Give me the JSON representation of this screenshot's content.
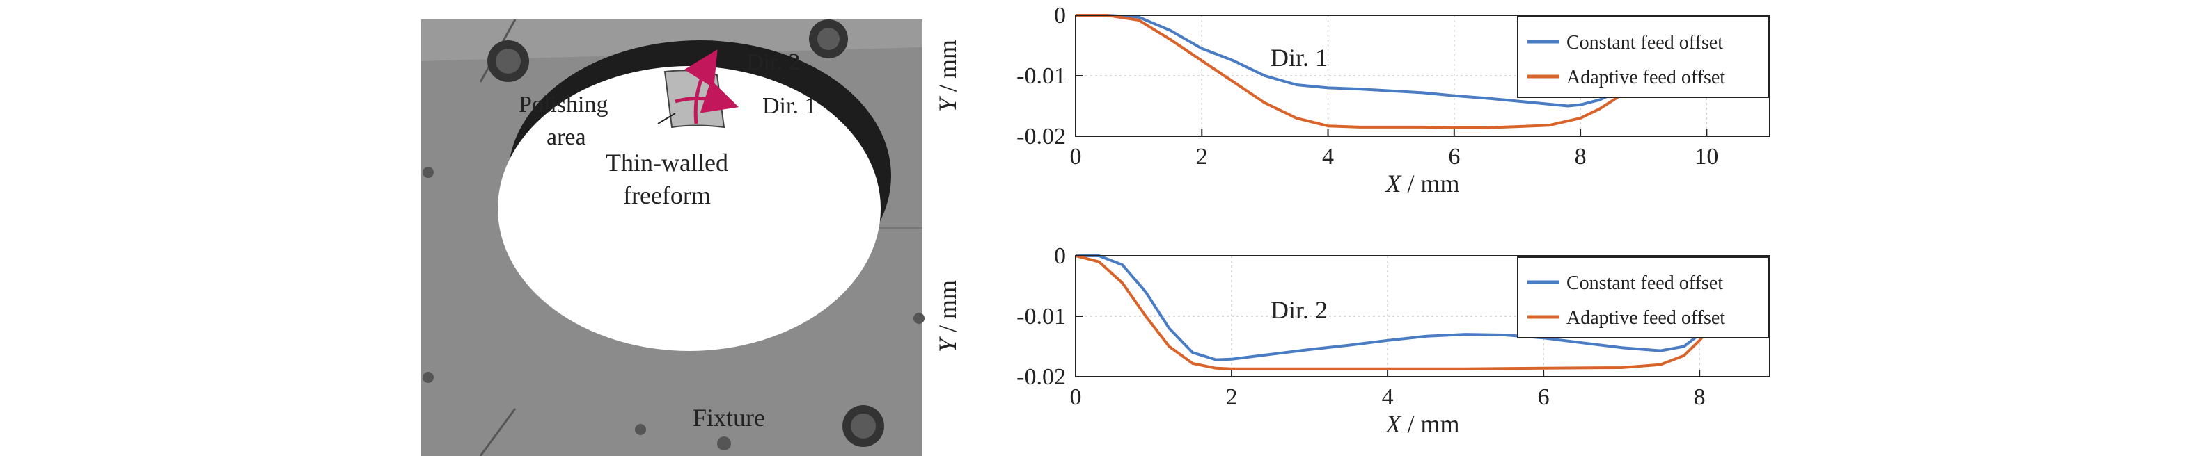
{
  "photo": {
    "labels": {
      "dir2": "Dir. 2",
      "dir1": "Dir. 1",
      "polishing_line1": "Polishing",
      "polishing_line2": "area",
      "thin_line1": "Thin-walled",
      "thin_line2": "freeform",
      "fixture": "Fixture"
    },
    "colors": {
      "plate": "#8a8a8a",
      "arrow": "#c2185b",
      "patch": "#b9b9b9"
    }
  },
  "chart_data": [
    {
      "type": "line",
      "annotation": "Dir. 1",
      "xlabel_italic": "X",
      "xlabel_unit": " / mm",
      "ylabel_italic": "Y",
      "ylabel_unit": " / mm",
      "xlim": [
        0,
        11
      ],
      "ylim": [
        -0.02,
        0
      ],
      "xticks": [
        0,
        2,
        4,
        6,
        8,
        10
      ],
      "xtick_labels": [
        "0",
        "2",
        "4",
        "6",
        "8",
        "10"
      ],
      "yticks": [
        0,
        -0.01,
        -0.02
      ],
      "ytick_labels": [
        "0",
        "-0.01",
        "-0.02"
      ],
      "grid": true,
      "legend_position": "top-right",
      "series": [
        {
          "name": "Constant feed offset",
          "color": "#4a7cc4",
          "x": [
            0,
            0.5,
            1.0,
            1.5,
            2.0,
            2.5,
            3.0,
            3.5,
            4.0,
            4.5,
            5.0,
            5.5,
            6.0,
            6.5,
            7.0,
            7.5,
            7.8,
            8.0,
            8.3,
            8.6,
            8.9,
            9.2
          ],
          "y": [
            0,
            0,
            -0.0003,
            -0.0025,
            -0.0055,
            -0.0075,
            -0.01,
            -0.0115,
            -0.012,
            -0.0122,
            -0.0125,
            -0.0128,
            -0.0133,
            -0.0137,
            -0.0142,
            -0.0147,
            -0.015,
            -0.0148,
            -0.014,
            -0.0126,
            -0.011,
            -0.009
          ]
        },
        {
          "name": "Adaptive feed offset",
          "color": "#d9642b",
          "x": [
            0,
            0.5,
            1.0,
            1.5,
            2.0,
            2.5,
            3.0,
            3.5,
            4.0,
            4.5,
            5.0,
            5.5,
            6.0,
            6.5,
            7.0,
            7.5,
            8.0,
            8.3,
            8.6,
            8.9,
            9.2
          ],
          "y": [
            0,
            0,
            -0.0008,
            -0.004,
            -0.0075,
            -0.011,
            -0.0145,
            -0.017,
            -0.0183,
            -0.0185,
            -0.0185,
            -0.0185,
            -0.0186,
            -0.0186,
            -0.0184,
            -0.0182,
            -0.017,
            -0.0155,
            -0.0135,
            -0.011,
            -0.009
          ]
        }
      ]
    },
    {
      "type": "line",
      "annotation": "Dir. 2",
      "xlabel_italic": "X",
      "xlabel_unit": " / mm",
      "ylabel_italic": "Y",
      "ylabel_unit": " / mm",
      "xlim": [
        0,
        8.9
      ],
      "ylim": [
        -0.02,
        0
      ],
      "xticks": [
        0,
        2,
        4,
        6,
        8
      ],
      "xtick_labels": [
        "0",
        "2",
        "4",
        "6",
        "8"
      ],
      "yticks": [
        0,
        -0.01,
        -0.02
      ],
      "ytick_labels": [
        "0",
        "-0.01",
        "-0.02"
      ],
      "grid": true,
      "legend_position": "top-right",
      "series": [
        {
          "name": "Constant feed offset",
          "color": "#4a7cc4",
          "x": [
            0,
            0.3,
            0.6,
            0.9,
            1.2,
            1.5,
            1.8,
            2.0,
            2.5,
            3.0,
            3.5,
            4.0,
            4.5,
            5.0,
            5.5,
            6.0,
            6.5,
            7.0,
            7.5,
            7.8,
            8.0,
            8.2
          ],
          "y": [
            0,
            0,
            -0.0015,
            -0.006,
            -0.012,
            -0.016,
            -0.0172,
            -0.0171,
            -0.0163,
            -0.0155,
            -0.0148,
            -0.014,
            -0.0133,
            -0.013,
            -0.0131,
            -0.0136,
            -0.0144,
            -0.0152,
            -0.0157,
            -0.015,
            -0.013,
            -0.011
          ]
        },
        {
          "name": "Adaptive feed offset",
          "color": "#d9642b",
          "x": [
            0,
            0.3,
            0.6,
            0.9,
            1.2,
            1.5,
            1.8,
            2.0,
            2.5,
            3.0,
            4.0,
            5.0,
            6.0,
            7.0,
            7.5,
            7.8,
            8.0,
            8.2
          ],
          "y": [
            0,
            -0.001,
            -0.0045,
            -0.01,
            -0.015,
            -0.0178,
            -0.0186,
            -0.0187,
            -0.0187,
            -0.0187,
            -0.0187,
            -0.0187,
            -0.0186,
            -0.0185,
            -0.018,
            -0.0165,
            -0.014,
            -0.011
          ]
        }
      ]
    }
  ]
}
